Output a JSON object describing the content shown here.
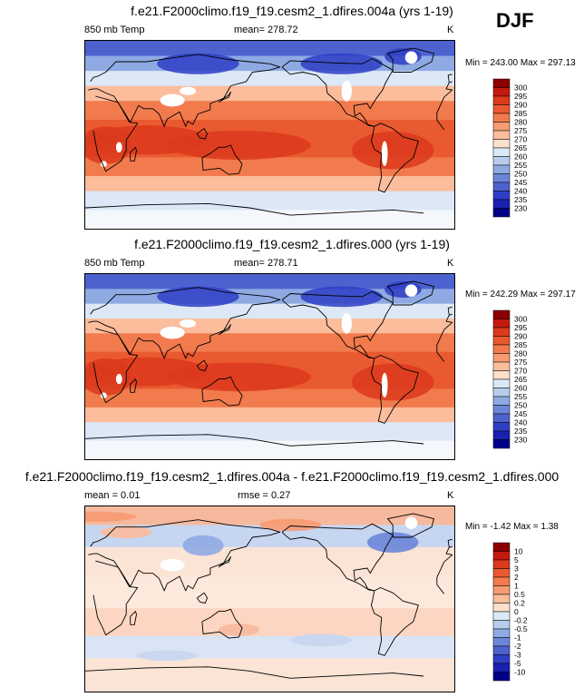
{
  "season": "DJF",
  "panels": [
    {
      "id": "top",
      "title": "f.e21.F2000climo.f19_f19.cesm2_1.dfires.004a (yrs 1-19)",
      "variable": "850 mb Temp",
      "stat_text": "mean= 278.72",
      "unit": "K",
      "minmax": "Min = 243.00 Max = 297.13",
      "palette": "temp",
      "cbar_labels": [
        "300",
        "295",
        "290",
        "285",
        "280",
        "275",
        "270",
        "265",
        "260",
        "255",
        "250",
        "245",
        "240",
        "235",
        "230"
      ],
      "cbar_colors": [
        "#8c0000",
        "#c41a0d",
        "#dc3a1c",
        "#ea5a30",
        "#f27b4e",
        "#f79b73",
        "#fbbd9c",
        "#fde0cb",
        "#dce8f6",
        "#b8cdee",
        "#8faae3",
        "#6c86d9",
        "#4d62cf",
        "#2f3ec6",
        "#1a20b0",
        "#00008a"
      ]
    },
    {
      "id": "middle",
      "title": "f.e21.F2000climo.f19_f19.cesm2_1.dfires.000 (yrs 1-19)",
      "variable": "850 mb Temp",
      "stat_text": "mean= 278.71",
      "unit": "K",
      "minmax": "Min = 242.29 Max = 297.17",
      "palette": "temp",
      "cbar_labels": [
        "300",
        "295",
        "290",
        "285",
        "280",
        "275",
        "270",
        "265",
        "260",
        "255",
        "250",
        "245",
        "240",
        "235",
        "230"
      ],
      "cbar_colors": [
        "#8c0000",
        "#c41a0d",
        "#dc3a1c",
        "#ea5a30",
        "#f27b4e",
        "#f79b73",
        "#fbbd9c",
        "#fde0cb",
        "#dce8f6",
        "#b8cdee",
        "#8faae3",
        "#6c86d9",
        "#4d62cf",
        "#2f3ec6",
        "#1a20b0",
        "#00008a"
      ]
    },
    {
      "id": "bottom",
      "title": "f.e21.F2000climo.f19_f19.cesm2_1.dfires.004a - f.e21.F2000climo.f19_f19.cesm2_1.dfires.000",
      "variable": "mean =   0.01",
      "stat_text": "rmse =   0.27",
      "unit": "K",
      "minmax": "Min =  -1.42 Max =   1.38",
      "palette": "diff",
      "cbar_labels": [
        "10",
        "5",
        "3",
        "2",
        "1",
        "0.5",
        "0.2",
        "0",
        "-0.2",
        "-0.5",
        "-1",
        "-2",
        "-3",
        "-5",
        "-10"
      ],
      "cbar_colors": [
        "#8c0000",
        "#c41a0d",
        "#dc3a1c",
        "#ea5a30",
        "#f27b4e",
        "#f79b73",
        "#fbbd9c",
        "#fde0cb",
        "#dce8f6",
        "#b8cdee",
        "#8faae3",
        "#6c86d9",
        "#4d62cf",
        "#2f3ec6",
        "#1a20b0",
        "#00008a"
      ]
    }
  ]
}
